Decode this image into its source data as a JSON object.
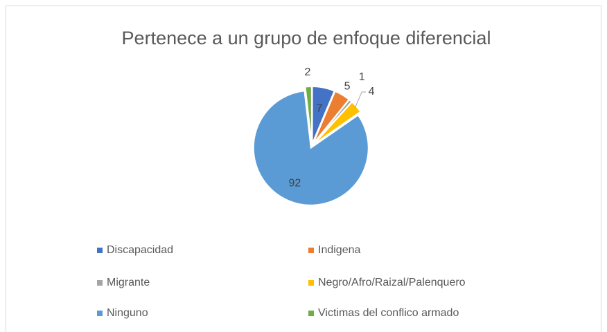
{
  "chart_data": {
    "type": "pie",
    "title": "Pertenece a un grupo de enfoque diferencial",
    "categories": [
      "Discapacidad",
      "Indigena",
      "Migrante",
      "Negro/Afro/Raizal/Palenquero",
      "Ninguno",
      "Victimas del conflico armado"
    ],
    "values": [
      7,
      5,
      1,
      4,
      92,
      2
    ],
    "colors": [
      "#4472c4",
      "#ed7d31",
      "#a5a5a5",
      "#ffc000",
      "#5b9bd5",
      "#70ad47"
    ],
    "legend": "bottom"
  }
}
